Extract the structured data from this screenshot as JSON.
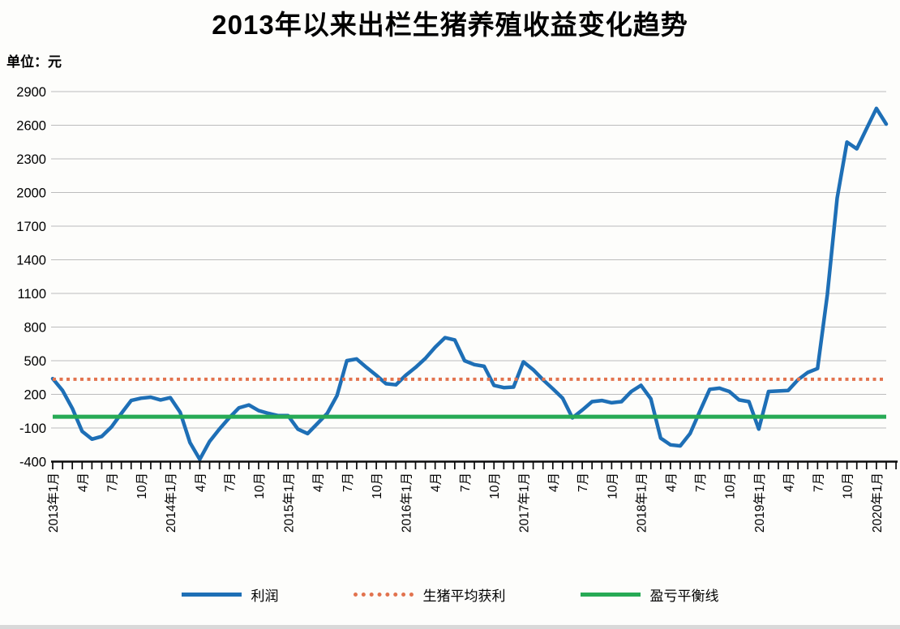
{
  "title": "2013年以来出栏生猪养殖收益变化趋势",
  "unit_label": "单位：元",
  "legend": [
    {
      "label": "利润",
      "color": "#1E6FB6",
      "line_style": "solid"
    },
    {
      "label": "生猪平均获利",
      "color": "#E2734E",
      "line_style": "dotted"
    },
    {
      "label": "盈亏平衡线",
      "color": "#27AA55",
      "line_style": "solid"
    }
  ],
  "chart_data": {
    "type": "line",
    "title": "2013年以来出栏生猪养殖收益变化趋势",
    "ylabel": "单位：元",
    "ylim": [
      -400,
      2900
    ],
    "ytick_step": 300,
    "grid": true,
    "legend_position": "bottom",
    "y_tick_labels": [
      "2900",
      "2600",
      "2300",
      "2000",
      "1700",
      "1400",
      "1100",
      "800",
      "500",
      "200",
      "-100",
      "-400"
    ],
    "x_tick_labels": [
      "2013年1月",
      "4月",
      "7月",
      "10月",
      "2014年1月",
      "4月",
      "7月",
      "10月",
      "2015年1月",
      "4月",
      "7月",
      "10月",
      "2016年1月",
      "4月",
      "7月",
      "10月",
      "2017年1月",
      "4月",
      "7月",
      "10月",
      "2018年1月",
      "4月",
      "7月",
      "10月",
      "2019年1月",
      "4月",
      "7月",
      "10月",
      "2020年1月"
    ],
    "x_label_every_n_months": 3,
    "x_start": "2013年1月",
    "x_end": "2020年2月",
    "series": [
      {
        "name": "利润",
        "type": "line",
        "color": "#1E6FB6",
        "monthly_values": [
          340,
          235,
          75,
          -130,
          -200,
          -175,
          -90,
          30,
          145,
          165,
          175,
          150,
          170,
          40,
          -230,
          -380,
          -220,
          -110,
          -10,
          80,
          105,
          55,
          30,
          10,
          10,
          -110,
          -150,
          -60,
          30,
          190,
          500,
          515,
          440,
          370,
          295,
          285,
          370,
          440,
          520,
          620,
          705,
          685,
          500,
          465,
          450,
          280,
          260,
          265,
          490,
          420,
          330,
          250,
          165,
          -10,
          60,
          135,
          145,
          125,
          135,
          225,
          280,
          160,
          -190,
          -250,
          -260,
          -150,
          50,
          245,
          255,
          225,
          150,
          135,
          -110,
          225,
          230,
          235,
          330,
          395,
          430,
          1090,
          1950,
          2450,
          2390,
          2570,
          2750,
          2610
        ]
      },
      {
        "name": "生猪平均获利",
        "type": "hline",
        "value": 335,
        "color": "#E2734E",
        "dash": "dotted"
      },
      {
        "name": "盈亏平衡线",
        "type": "hline",
        "value": 0,
        "color": "#27AA55",
        "dash": "solid"
      }
    ]
  }
}
